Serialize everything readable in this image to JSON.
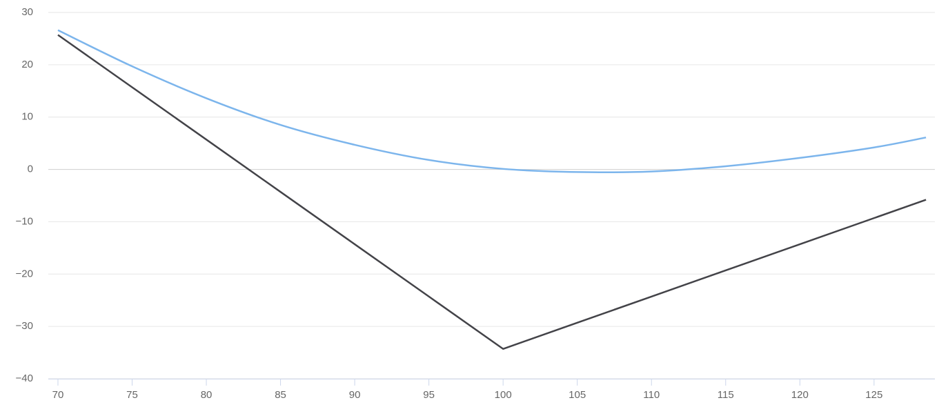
{
  "chart_data": {
    "type": "line",
    "x": [
      70,
      75,
      80,
      85,
      90,
      95,
      100,
      105,
      110,
      115,
      120,
      125,
      128.5
    ],
    "series": [
      {
        "color": "#7cb5ec",
        "values": [
          26.6,
          19.7,
          13.6,
          8.5,
          4.7,
          1.8,
          0.1,
          -0.5,
          -0.4,
          0.6,
          2.2,
          4.2,
          6.1
        ]
      },
      {
        "color": "#434348",
        "values": [
          25.7,
          15.7,
          5.7,
          -4.3,
          -14.3,
          -24.3,
          -34.3,
          -29.3,
          -24.3,
          -19.3,
          -14.3,
          -9.3,
          -5.8
        ]
      }
    ],
    "xlim": [
      69.35,
      129.1
    ],
    "xticks": [
      70,
      75,
      80,
      85,
      90,
      95,
      100,
      105,
      110,
      115,
      120,
      125
    ],
    "ylim": [
      -40,
      30
    ],
    "yticks": [
      {
        "value": -40,
        "label": "−40"
      },
      {
        "value": -30,
        "label": "−30"
      },
      {
        "value": -20,
        "label": "−20"
      },
      {
        "value": -10,
        "label": "−10"
      },
      0,
      10,
      20,
      30
    ],
    "grid": true
  }
}
